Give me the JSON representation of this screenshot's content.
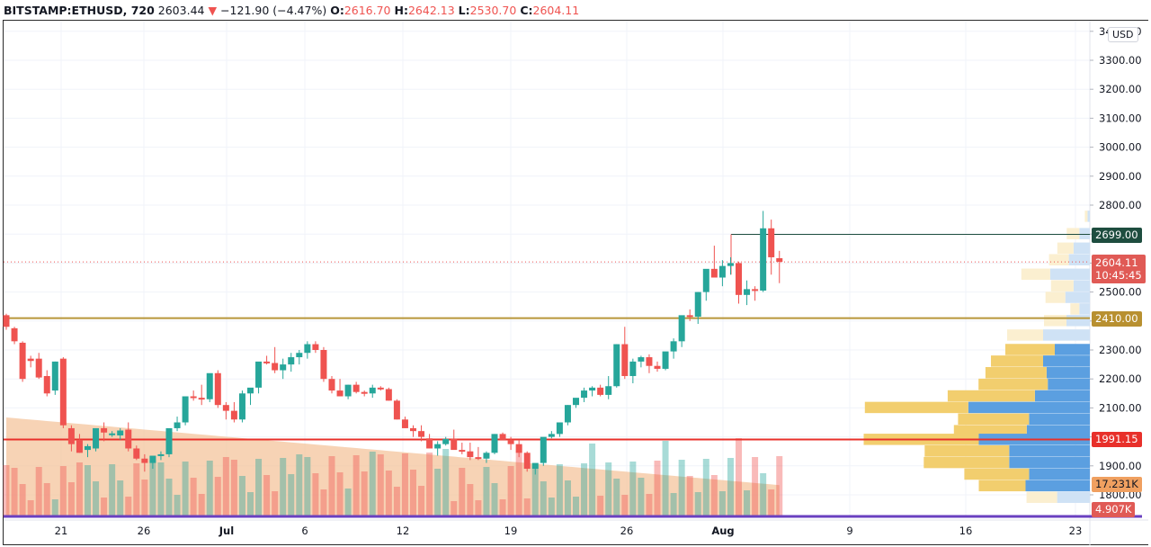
{
  "header": {
    "symbol": "BITSTAMP:ETHUSD, 720",
    "last": "2603.44",
    "change_icon": "down-triangle-icon",
    "change": "−121.90 (−4.47%)",
    "o_label": "O:",
    "o": "2616.70",
    "h_label": "H:",
    "h": "2642.13",
    "l_label": "L:",
    "l": "2530.70",
    "c_label": "C:",
    "c": "2604.11"
  },
  "currency_button": "USD",
  "price_scale": [
    "3400.00",
    "3300.00",
    "3200.00",
    "3100.00",
    "3000.00",
    "2900.00",
    "2800.00",
    "2700.00",
    "2600.00",
    "2500.00",
    "2400.00",
    "2300.00",
    "2200.00",
    "2100.00",
    "2000.00",
    "1900.00",
    "1800.00"
  ],
  "time_scale": [
    "21",
    "26",
    "Jul",
    "6",
    "12",
    "19",
    "26",
    "Aug",
    "9",
    "16",
    "23"
  ],
  "tags": {
    "resistance_high": {
      "value": "2699.00",
      "color": "#1e4d3f"
    },
    "last_price": {
      "value": "2604.11",
      "countdown": "10:45:45",
      "color": "#e05a55"
    },
    "resistance_mid": {
      "value": "2410.00",
      "color": "#b89030"
    },
    "support": {
      "value": "1991.15",
      "color": "#e8302a"
    },
    "volume_ma": {
      "value": "17.231K",
      "color": "#f0a060"
    },
    "volume": {
      "value": "4.907K",
      "color": "#e05a55"
    }
  },
  "colors": {
    "up": "#26a69a",
    "down": "#ef5350",
    "vp_up": "#5b9fe0",
    "vp_down": "#f2ce6e",
    "line_2410": "#b8963a",
    "line_1991": "#e8302a",
    "line_bottom": "#6a40c0"
  },
  "chart_data": {
    "type": "candlestick",
    "title": "BITSTAMP:ETHUSD, 720",
    "xlabel": "",
    "ylabel": "USD",
    "ylim": [
      1750,
      3420
    ],
    "x_ticks": [
      "21",
      "26",
      "Jul",
      "6",
      "12",
      "19",
      "26",
      "Aug",
      "9",
      "16",
      "23"
    ],
    "horizontal_levels": [
      2699.0,
      2410.0,
      1991.15
    ],
    "last_price": 2604.11,
    "candles_ohlc": [
      [
        2420,
        2425,
        2370,
        2380
      ],
      [
        2375,
        2380,
        2320,
        2330
      ],
      [
        2325,
        2330,
        2190,
        2200
      ],
      [
        2270,
        2280,
        2240,
        2262
      ],
      [
        2270,
        2290,
        2200,
        2205
      ],
      [
        2210,
        2230,
        2140,
        2150
      ],
      [
        2160,
        2260,
        2145,
        2260
      ],
      [
        2270,
        2275,
        2030,
        2040
      ],
      [
        2030,
        2040,
        1950,
        1975
      ],
      [
        1990,
        2010,
        1945,
        1945
      ],
      [
        1955,
        1975,
        1930,
        1968
      ],
      [
        1960,
        2010,
        1950,
        2030
      ],
      [
        2030,
        2050,
        1985,
        2015
      ],
      [
        2010,
        2020,
        2000,
        2012
      ],
      [
        2005,
        2030,
        1990,
        2022
      ],
      [
        2025,
        2050,
        1950,
        1960
      ],
      [
        1960,
        1970,
        1920,
        1925
      ],
      [
        1925,
        1940,
        1880,
        1910
      ],
      [
        1910,
        1930,
        1890,
        1935
      ],
      [
        1935,
        1950,
        1920,
        1940
      ],
      [
        1940,
        2020,
        1930,
        2030
      ],
      [
        2030,
        2070,
        2020,
        2050
      ],
      [
        2050,
        2110,
        2040,
        2140
      ],
      [
        2140,
        2160,
        2125,
        2135
      ],
      [
        2135,
        2180,
        2110,
        2130
      ],
      [
        2130,
        2210,
        2120,
        2220
      ],
      [
        2220,
        2230,
        2100,
        2110
      ],
      [
        2110,
        2120,
        2060,
        2090
      ],
      [
        2090,
        2120,
        2050,
        2060
      ],
      [
        2060,
        2160,
        2050,
        2150
      ],
      [
        2150,
        2160,
        2110,
        2170
      ],
      [
        2170,
        2230,
        2150,
        2260
      ],
      [
        2260,
        2280,
        2250,
        2255
      ],
      [
        2255,
        2310,
        2220,
        2230
      ],
      [
        2230,
        2270,
        2200,
        2250
      ],
      [
        2250,
        2290,
        2225,
        2275
      ],
      [
        2275,
        2300,
        2250,
        2290
      ],
      [
        2290,
        2330,
        2270,
        2320
      ],
      [
        2320,
        2330,
        2290,
        2300
      ],
      [
        2300,
        2310,
        2190,
        2200
      ],
      [
        2200,
        2210,
        2150,
        2160
      ],
      [
        2160,
        2200,
        2140,
        2140
      ],
      [
        2140,
        2180,
        2130,
        2180
      ],
      [
        2180,
        2190,
        2150,
        2155
      ],
      [
        2155,
        2160,
        2140,
        2150
      ],
      [
        2150,
        2180,
        2135,
        2170
      ],
      [
        2170,
        2175,
        2160,
        2165
      ],
      [
        2165,
        2170,
        2125,
        2125
      ],
      [
        2125,
        2130,
        2060,
        2060
      ],
      [
        2060,
        2070,
        2030,
        2030
      ],
      [
        2030,
        2040,
        2000,
        2020
      ],
      [
        2020,
        2040,
        1985,
        2000
      ],
      [
        1995,
        2010,
        1960,
        1960
      ],
      [
        1960,
        1985,
        1935,
        1975
      ],
      [
        1975,
        2000,
        1970,
        1993
      ],
      [
        1993,
        2025,
        1960,
        1955
      ],
      [
        1955,
        1980,
        1940,
        1950
      ],
      [
        1950,
        1980,
        1920,
        1930
      ],
      [
        1930,
        1965,
        1920,
        1925
      ],
      [
        1925,
        1950,
        1910,
        1945
      ],
      [
        1945,
        2010,
        1940,
        2010
      ],
      [
        2010,
        2015,
        1990,
        1990
      ],
      [
        1990,
        2000,
        1955,
        1975
      ],
      [
        1975,
        1990,
        1930,
        1945
      ],
      [
        1945,
        1950,
        1880,
        1890
      ],
      [
        1890,
        1905,
        1870,
        1910
      ],
      [
        1910,
        1990,
        1900,
        2000
      ],
      [
        2000,
        2020,
        1995,
        2010
      ],
      [
        2010,
        2045,
        2000,
        2050
      ],
      [
        2050,
        2110,
        2040,
        2110
      ],
      [
        2110,
        2130,
        2100,
        2135
      ],
      [
        2135,
        2170,
        2120,
        2160
      ],
      [
        2160,
        2175,
        2140,
        2170
      ],
      [
        2170,
        2180,
        2140,
        2145
      ],
      [
        2145,
        2210,
        2130,
        2175
      ],
      [
        2175,
        2320,
        2170,
        2320
      ],
      [
        2320,
        2380,
        2200,
        2210
      ],
      [
        2210,
        2270,
        2185,
        2260
      ],
      [
        2260,
        2280,
        2240,
        2275
      ],
      [
        2275,
        2285,
        2220,
        2245
      ],
      [
        2245,
        2260,
        2225,
        2235
      ],
      [
        2235,
        2290,
        2230,
        2295
      ],
      [
        2295,
        2340,
        2270,
        2330
      ],
      [
        2330,
        2390,
        2310,
        2420
      ],
      [
        2420,
        2440,
        2400,
        2415
      ],
      [
        2415,
        2500,
        2390,
        2500
      ],
      [
        2500,
        2530,
        2470,
        2580
      ],
      [
        2580,
        2660,
        2560,
        2550
      ],
      [
        2550,
        2610,
        2520,
        2590
      ],
      [
        2590,
        2620,
        2560,
        2600
      ],
      [
        2600,
        2605,
        2460,
        2490
      ],
      [
        2490,
        2540,
        2455,
        2510
      ],
      [
        2510,
        2520,
        2470,
        2505
      ],
      [
        2505,
        2780,
        2500,
        2720
      ],
      [
        2720,
        2750,
        2560,
        2620
      ],
      [
        2616.7,
        2642.13,
        2530.7,
        2604.11
      ]
    ],
    "volume_profile_rows": [
      {
        "price": 2760,
        "up": 3,
        "down": 2
      },
      {
        "price": 2700,
        "up": 14,
        "down": 9
      },
      {
        "price": 2650,
        "up": 18,
        "down": 14
      },
      {
        "price": 2610,
        "up": 22,
        "down": 18
      },
      {
        "price": 2560,
        "up": 32,
        "down": 34
      },
      {
        "price": 2520,
        "up": 25,
        "down": 14
      },
      {
        "price": 2480,
        "up": 22,
        "down": 21
      },
      {
        "price": 2440,
        "up": 10,
        "down": 9
      },
      {
        "price": 2400,
        "up": 25,
        "down": 20
      },
      {
        "price": 2350,
        "up": 40,
        "down": 40
      },
      {
        "price": 2300,
        "up": 55,
        "down": 30
      },
      {
        "price": 2260,
        "up": 58,
        "down": 40
      },
      {
        "price": 2220,
        "up": 68,
        "down": 37
      },
      {
        "price": 2180,
        "up": 77,
        "down": 36
      },
      {
        "price": 2140,
        "up": 97,
        "down": 47
      },
      {
        "price": 2100,
        "up": 115,
        "down": 104
      },
      {
        "price": 2060,
        "up": 79,
        "down": 52
      },
      {
        "price": 2020,
        "up": 81,
        "down": 54
      },
      {
        "price": 1990,
        "up": 128,
        "down": 95
      },
      {
        "price": 1950,
        "up": 94,
        "down": 69
      },
      {
        "price": 1910,
        "up": 95,
        "down": 69
      },
      {
        "price": 1870,
        "up": 72,
        "down": 52
      },
      {
        "price": 1830,
        "up": 52,
        "down": 55
      },
      {
        "price": 1790,
        "up": 34,
        "down": 28
      }
    ],
    "volume_current": "4.907K",
    "volume_ma": "17.231K"
  }
}
